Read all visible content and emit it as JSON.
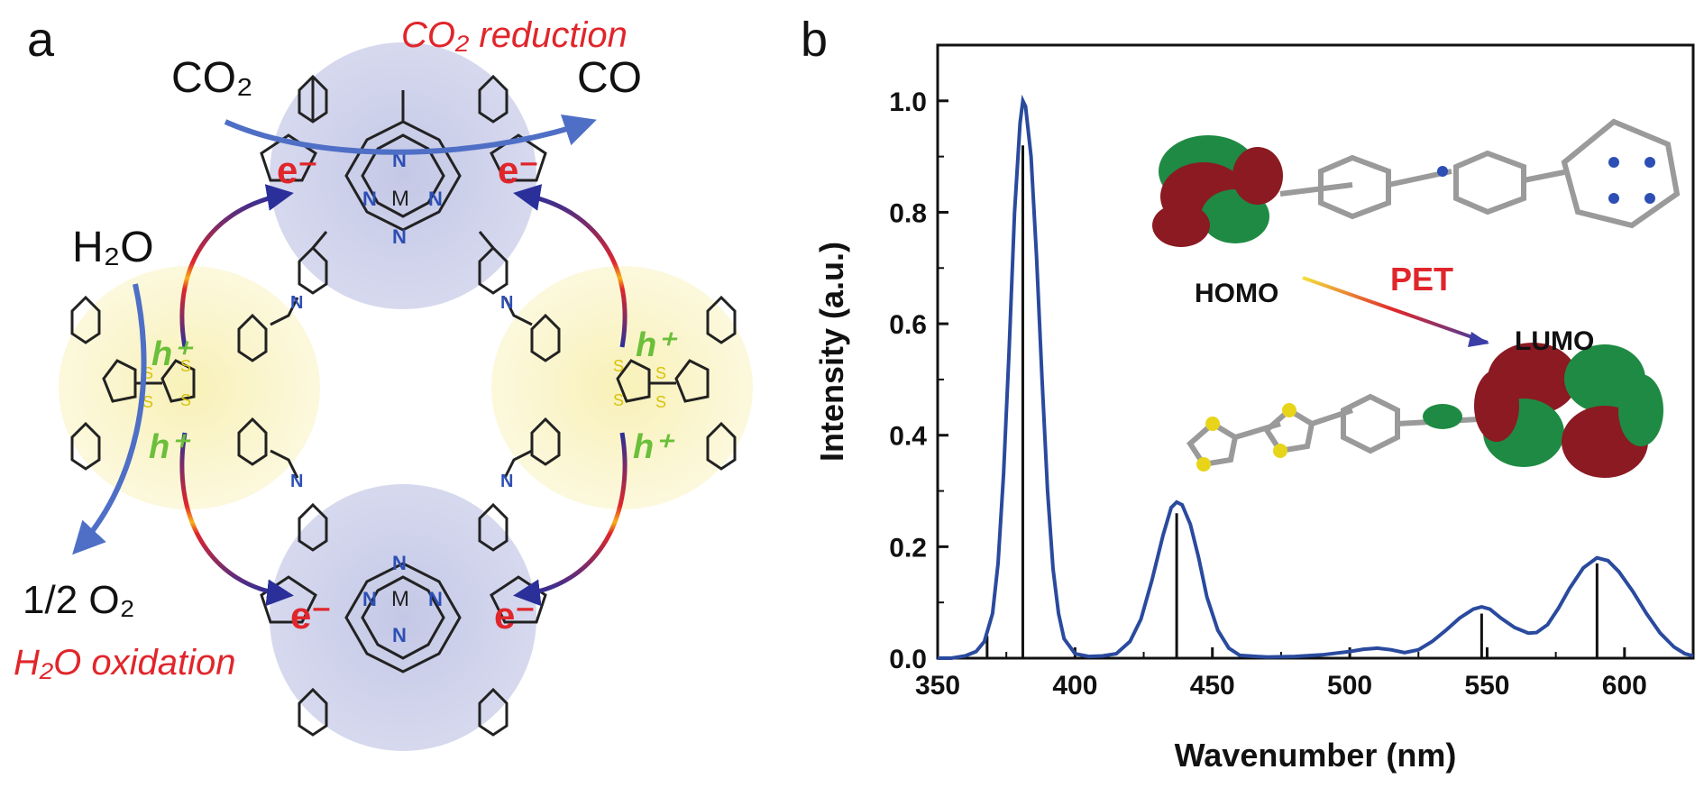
{
  "panel_a": {
    "letter": "a",
    "co2_reduction_label": "CO₂ reduction",
    "co2": "CO₂",
    "co": "CO",
    "h2o": "H₂O",
    "half_o2": "1/2 O₂",
    "h2o_oxidation_label": "H₂O oxidation",
    "electron": "e⁻",
    "hole": "h⁺",
    "metal": "M",
    "nitrogen": "N",
    "sulfur": "S",
    "colors": {
      "red": "#e0262b",
      "blue_arrow": "#4f6fc6",
      "green": "#6bbf3a",
      "porphyrin_bg": "#c9cde6",
      "ttf_bg": "#fbf6cc",
      "nitrogen_blue": "#2d4fb5"
    }
  },
  "panel_b": {
    "letter": "b",
    "homo_label": "HOMO",
    "lumo_label": "LUMO",
    "pet_label": "PET",
    "colors": {
      "curve": "#2a4a9e",
      "pet_red": "#e0262b"
    }
  },
  "chart_data": {
    "type": "line",
    "xlabel": "Wavenumber (nm)",
    "ylabel": "Intensity (a.u.)",
    "xlim": [
      350,
      625
    ],
    "ylim": [
      0,
      1.1
    ],
    "xticks": [
      350,
      400,
      450,
      500,
      550,
      600
    ],
    "yticks": [
      0.0,
      0.2,
      0.4,
      0.6,
      0.8,
      1.0
    ],
    "xtick_labels": [
      "350",
      "400",
      "450",
      "500",
      "550",
      "600"
    ],
    "ytick_labels": [
      "0.0",
      "0.2",
      "0.4",
      "0.6",
      "0.8",
      "1.0"
    ],
    "grid": false,
    "series": [
      {
        "curve_points": [
          [
            350,
            0
          ],
          [
            355,
            0
          ],
          [
            360,
            0.004
          ],
          [
            364,
            0.012
          ],
          [
            367,
            0.03
          ],
          [
            370,
            0.08
          ],
          [
            372,
            0.17
          ],
          [
            374,
            0.33
          ],
          [
            376,
            0.55
          ],
          [
            378,
            0.8
          ],
          [
            380,
            0.96
          ],
          [
            381,
            1.0
          ],
          [
            382,
            0.99
          ],
          [
            384,
            0.9
          ],
          [
            386,
            0.72
          ],
          [
            388,
            0.5
          ],
          [
            390,
            0.3
          ],
          [
            392,
            0.16
          ],
          [
            394,
            0.08
          ],
          [
            396,
            0.035
          ],
          [
            400,
            0.008
          ],
          [
            405,
            0.003
          ],
          [
            410,
            0.004
          ],
          [
            415,
            0.008
          ],
          [
            420,
            0.03
          ],
          [
            424,
            0.07
          ],
          [
            428,
            0.14
          ],
          [
            432,
            0.22
          ],
          [
            435,
            0.27
          ],
          [
            437,
            0.28
          ],
          [
            439,
            0.275
          ],
          [
            442,
            0.24
          ],
          [
            445,
            0.18
          ],
          [
            448,
            0.11
          ],
          [
            452,
            0.05
          ],
          [
            456,
            0.018
          ],
          [
            460,
            0.005
          ],
          [
            470,
            0.002
          ],
          [
            480,
            0.003
          ],
          [
            490,
            0.006
          ],
          [
            500,
            0.012
          ],
          [
            505,
            0.016
          ],
          [
            510,
            0.018
          ],
          [
            515,
            0.015
          ],
          [
            520,
            0.01
          ],
          [
            525,
            0.015
          ],
          [
            530,
            0.03
          ],
          [
            535,
            0.05
          ],
          [
            540,
            0.072
          ],
          [
            545,
            0.088
          ],
          [
            548,
            0.092
          ],
          [
            551,
            0.088
          ],
          [
            555,
            0.072
          ],
          [
            560,
            0.055
          ],
          [
            565,
            0.045
          ],
          [
            568,
            0.046
          ],
          [
            572,
            0.06
          ],
          [
            576,
            0.09
          ],
          [
            580,
            0.125
          ],
          [
            585,
            0.162
          ],
          [
            590,
            0.18
          ],
          [
            594,
            0.175
          ],
          [
            598,
            0.155
          ],
          [
            603,
            0.12
          ],
          [
            608,
            0.08
          ],
          [
            613,
            0.045
          ],
          [
            618,
            0.02
          ],
          [
            622,
            0.008
          ],
          [
            625,
            0.004
          ]
        ]
      }
    ],
    "sticks": [
      {
        "x": 368,
        "y": 0.04
      },
      {
        "x": 381,
        "y": 0.92
      },
      {
        "x": 437,
        "y": 0.26
      },
      {
        "x": 548,
        "y": 0.08
      },
      {
        "x": 590,
        "y": 0.17
      }
    ]
  }
}
